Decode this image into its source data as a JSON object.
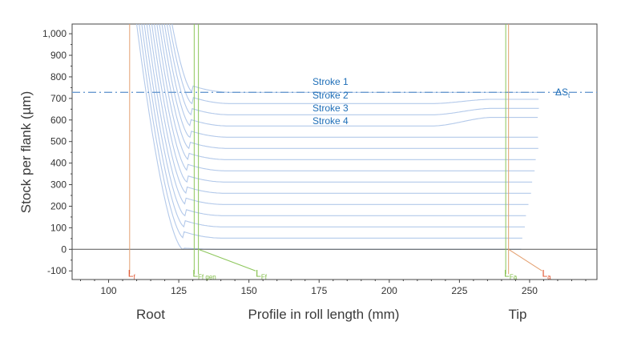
{
  "chart_data": {
    "type": "line",
    "xlabel": "Profile in roll length (mm)",
    "ylabel": "Stock per flank (µm)",
    "xlim": [
      85,
      270
    ],
    "ylim": [
      -130,
      1020
    ],
    "x_ticks": [
      "100",
      "125",
      "150",
      "175",
      "200",
      "225",
      "250"
    ],
    "y_ticks": [
      "1,000",
      "900",
      "800",
      "700",
      "600",
      "500",
      "400",
      "300",
      "200",
      "100",
      "0",
      "-100"
    ],
    "region_labels": {
      "root": "Root",
      "tip": "Tip"
    },
    "stock_curves": {
      "count": 15,
      "x_start": 128,
      "x_end": 247,
      "plateau_levels": [
        0,
        52,
        104,
        156,
        208,
        260,
        312,
        364,
        416,
        468,
        520,
        572,
        624,
        676,
        728
      ],
      "tip_bulge": [
        0,
        20,
        30,
        40
      ]
    },
    "stroke_line": {
      "value": 728,
      "label": "ΔS",
      "label_sub": "t",
      "color": "#6a9ad0"
    },
    "stroke_labels": [
      "Stroke 1",
      "Stroke 2",
      "Stroke 3",
      "Stroke 4"
    ],
    "markers": [
      {
        "x": 107.5,
        "label": "L",
        "sub": "f",
        "color": "#e0502a",
        "line_color": "#e4a070"
      },
      {
        "x": 130.5,
        "label": "L",
        "sub": "Ff gen",
        "color": "#7dbb42",
        "line_color": "#8cc65a"
      },
      {
        "x": 132,
        "label": "L",
        "sub": "Ff",
        "color": "#7dbb42",
        "line_color": "#8cc65a"
      },
      {
        "x": 241.5,
        "label": "L",
        "sub": "Fa",
        "color": "#7dbb42",
        "line_color": "#8cc65a"
      },
      {
        "x": 242.5,
        "label": "L",
        "sub": "a",
        "color": "#e0502a",
        "line_color": "#e4a070"
      }
    ],
    "colors": {
      "curves": "#b3c9ea",
      "zero_line": "#555555",
      "frame": "#444444"
    },
    "grid": false
  }
}
